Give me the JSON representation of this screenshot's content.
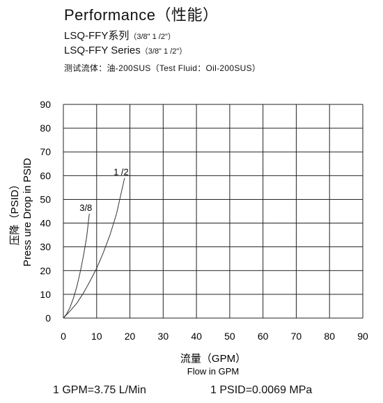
{
  "header": {
    "title": "Performance（性能）",
    "line1_main": "LSQ-FFY系列",
    "line1_sizes": "（3/8\" 1 /2\"）",
    "line2_main": "LSQ-FFY Series",
    "line2_sizes": "（3/8\" 1 /2\"）",
    "line3": "测试流体：油-200SUS（Test Fluid：Oil-200SUS）"
  },
  "chart_data": {
    "type": "line",
    "title": "",
    "xlabel_cn": "流量（GPM）",
    "xlabel": "Flow in GPM",
    "ylabel_cn": "压降（PSID）",
    "ylabel": "Press ure Drop in PSID",
    "xlim": [
      0,
      90
    ],
    "ylim": [
      0,
      90
    ],
    "xticks": [
      0,
      10,
      20,
      30,
      40,
      50,
      60,
      70,
      80,
      90
    ],
    "yticks": [
      0,
      10,
      20,
      30,
      40,
      50,
      60,
      70,
      80,
      90
    ],
    "grid": true,
    "series": [
      {
        "name": "3/8",
        "x": [
          0,
          1,
          2,
          3,
          4,
          5,
          6,
          7,
          7.8
        ],
        "y": [
          0,
          1.8,
          4.5,
          8.3,
          13,
          19,
          26,
          34,
          44
        ]
      },
      {
        "name": "1 /2",
        "x": [
          0,
          2,
          4,
          6,
          8,
          10,
          12,
          14,
          16,
          18.4
        ],
        "y": [
          0,
          3,
          6.2,
          10.5,
          15.5,
          21,
          27.5,
          35,
          44,
          59
        ]
      }
    ]
  },
  "footer": {
    "conversion1": "1 GPM=3.75 L/Min",
    "conversion2": "1 PSID=0.0069 MPa"
  }
}
